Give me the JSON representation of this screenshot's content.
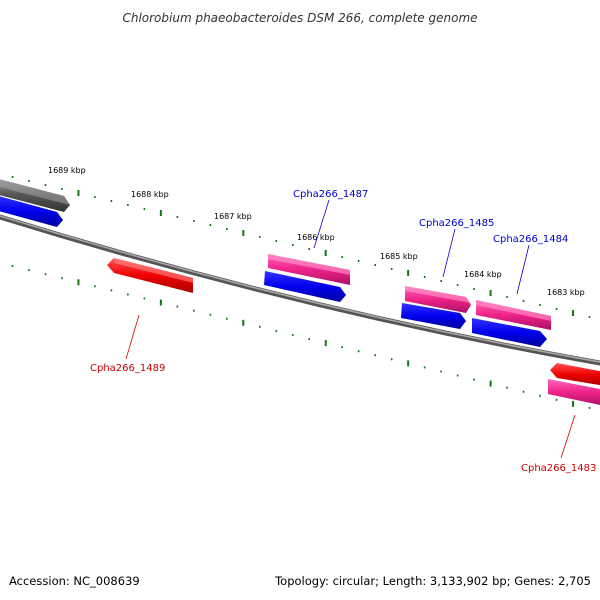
{
  "title": "Chlorobium phaeobacteroides DSM 266, complete genome",
  "footer": {
    "accession": "Accession: NC_008639",
    "summary": "Topology: circular; Length: 3,133,902 bp; Genes: 2,705"
  },
  "scale_labels": [
    "1689 kbp",
    "1688 kbp",
    "1687 kbp",
    "1686 kbp",
    "1685 kbp",
    "1684 kbp",
    "1683 kbp"
  ],
  "gene_labels": {
    "forward": [
      "Cpha266_1487",
      "Cpha266_1485",
      "Cpha266_1484"
    ],
    "reverse": [
      "Cpha266_1489",
      "Cpha266_1483"
    ]
  },
  "colors": {
    "forward_label": "#0000cc",
    "reverse_label": "#cc0000",
    "cds": "#0000ff",
    "gene_pink": "#ee2288",
    "gene_red": "#ff0000",
    "gene_gray": "#555555",
    "backbone": "#777777",
    "ticks": "#117711"
  }
}
